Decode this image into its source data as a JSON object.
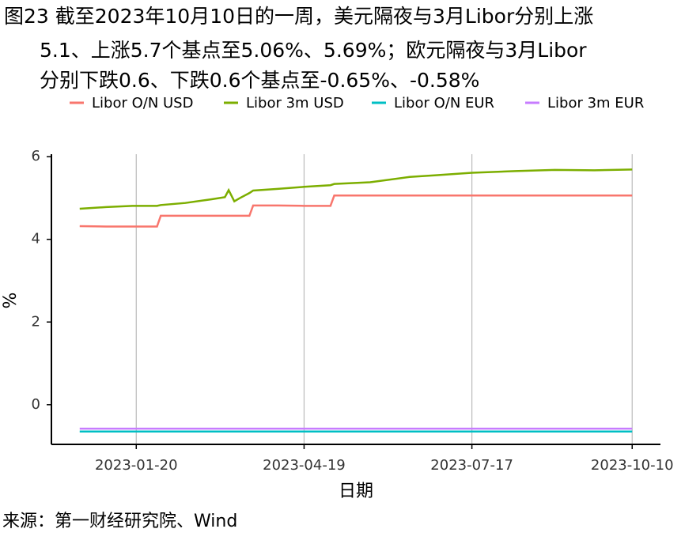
{
  "chart_data": {
    "type": "line",
    "title": [
      "图23  截至2023年10月10日的一周，美元隔夜与3月Libor分别上涨",
      "5.1、上涨5.7个基点至5.06%、5.69%；欧元隔夜与3月Libor",
      "分别下跌0.6、下跌0.6个基点至-0.65%、-0.58%"
    ],
    "x_label": "日期",
    "y_label": "%",
    "source": "来源：第一财经研究院、Wind",
    "x": [
      "2022-12-21",
      "2023-01-04",
      "2023-01-18",
      "2023-01-31",
      "2023-02-02",
      "2023-02-15",
      "2023-03-01",
      "2023-03-08",
      "2023-03-10",
      "2023-03-13",
      "2023-03-16",
      "2023-03-21",
      "2023-03-23",
      "2023-04-05",
      "2023-04-19",
      "2023-05-03",
      "2023-05-05",
      "2023-05-24",
      "2023-06-14",
      "2023-06-28",
      "2023-07-17",
      "2023-08-09",
      "2023-08-30",
      "2023-09-20",
      "2023-10-10"
    ],
    "series": [
      {
        "name": "Libor O/N USD",
        "color": "#F8766D",
        "values": [
          4.32,
          4.31,
          4.31,
          4.31,
          4.57,
          4.57,
          4.57,
          4.57,
          4.57,
          4.57,
          4.57,
          4.57,
          4.82,
          4.82,
          4.81,
          4.81,
          5.06,
          5.06,
          5.06,
          5.06,
          5.06,
          5.06,
          5.06,
          5.06,
          5.06
        ]
      },
      {
        "name": "Libor 3m USD",
        "color": "#7CAE00",
        "values": [
          4.74,
          4.78,
          4.81,
          4.81,
          4.83,
          4.88,
          4.97,
          5.02,
          5.19,
          4.92,
          5.0,
          5.12,
          5.18,
          5.22,
          5.27,
          5.31,
          5.34,
          5.38,
          5.51,
          5.55,
          5.61,
          5.65,
          5.68,
          5.67,
          5.69
        ]
      },
      {
        "name": "Libor O/N EUR",
        "color": "#00BFC4",
        "values": [
          -0.65,
          -0.65,
          -0.65,
          -0.65,
          -0.65,
          -0.65,
          -0.65,
          -0.65,
          -0.65,
          -0.65,
          -0.65,
          -0.65,
          -0.65,
          -0.65,
          -0.65,
          -0.65,
          -0.65,
          -0.65,
          -0.65,
          -0.65,
          -0.65,
          -0.65,
          -0.65,
          -0.65,
          -0.65
        ]
      },
      {
        "name": "Libor 3m EUR",
        "color": "#C77CFF",
        "values": [
          -0.58,
          -0.58,
          -0.58,
          -0.58,
          -0.58,
          -0.58,
          -0.58,
          -0.58,
          -0.58,
          -0.58,
          -0.58,
          -0.58,
          -0.58,
          -0.58,
          -0.58,
          -0.58,
          -0.58,
          -0.58,
          -0.58,
          -0.58,
          -0.58,
          -0.58,
          -0.58,
          -0.58,
          -0.58
        ]
      }
    ],
    "xlim": [
      "2022-12-06",
      "2023-10-25"
    ],
    "xticks": [
      "2023-01-20",
      "2023-04-19",
      "2023-07-17",
      "2023-10-10"
    ],
    "ylim": [
      -0.96,
      6.06
    ],
    "yticks": [
      0,
      2,
      4,
      6
    ],
    "grid": "x",
    "legend": "top"
  }
}
